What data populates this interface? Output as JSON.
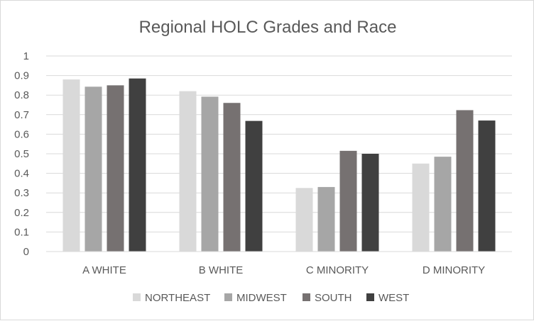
{
  "chart_data": {
    "type": "bar",
    "title": "Regional HOLC Grades and Race",
    "categories": [
      "A WHITE",
      "B WHITE",
      "C MINORITY",
      "D MINORITY"
    ],
    "series": [
      {
        "name": "NORTHEAST",
        "color": "#d9d9d9",
        "values": [
          0.88,
          0.82,
          0.325,
          0.45
        ]
      },
      {
        "name": "MIDWEST",
        "color": "#a6a6a6",
        "values": [
          0.843,
          0.792,
          0.33,
          0.485
        ]
      },
      {
        "name": "SOUTH",
        "color": "#767171",
        "values": [
          0.85,
          0.76,
          0.515,
          0.723
        ]
      },
      {
        "name": "WEST",
        "color": "#404040",
        "values": [
          0.885,
          0.668,
          0.5,
          0.67
        ]
      }
    ],
    "ylim": [
      0,
      1
    ],
    "yticks": [
      "0",
      "0.1",
      "0.2",
      "0.3",
      "0.4",
      "0.5",
      "0.6",
      "0.7",
      "0.8",
      "0.9",
      "1"
    ],
    "grid": true,
    "legend": "bottom"
  }
}
